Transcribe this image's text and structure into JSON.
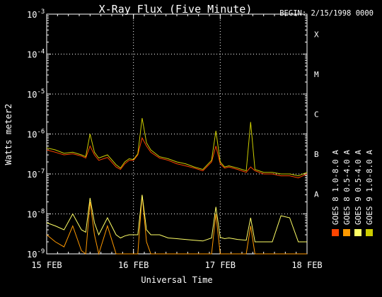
{
  "chart_data": {
    "type": "line",
    "title": "X-Ray Flux (Five Minute)",
    "subtitle": "BEGIN: 2/15/1998 0000",
    "xlabel": "Universal Time",
    "ylabel": "Watts meter2",
    "yscale": "log",
    "ylim": [
      1e-09,
      0.001
    ],
    "xlim_days": [
      0,
      3
    ],
    "x_ticks": [
      {
        "day": 0,
        "label": "15 FEB"
      },
      {
        "day": 1,
        "label": "16 FEB"
      },
      {
        "day": 2,
        "label": "17 FEB"
      },
      {
        "day": 3,
        "label": "18 FEB"
      }
    ],
    "y_ticks": [
      {
        "exp": -9,
        "base": "10",
        "sup": "-9"
      },
      {
        "exp": -8,
        "base": "10",
        "sup": "-8"
      },
      {
        "exp": -7,
        "base": "10",
        "sup": "-7"
      },
      {
        "exp": -6,
        "base": "10",
        "sup": "-6"
      },
      {
        "exp": -5,
        "base": "10",
        "sup": "-5"
      },
      {
        "exp": -4,
        "base": "10",
        "sup": "-4"
      },
      {
        "exp": -3,
        "base": "10",
        "sup": "-3"
      }
    ],
    "flare_classes": [
      {
        "label": "A",
        "exp": -7.5
      },
      {
        "label": "B",
        "exp": -6.5
      },
      {
        "label": "C",
        "exp": -5.5
      },
      {
        "label": "M",
        "exp": -4.5
      },
      {
        "label": "X",
        "exp": -3.5
      }
    ],
    "grid": "dotted, horizontal at decades -8 to -4, vertical at day boundaries",
    "legend_position": "right, vertical",
    "series": [
      {
        "name": "GOES 8 1.0-8.0 A",
        "color": "#ff4400",
        "x": [
          0,
          0.1,
          0.2,
          0.3,
          0.4,
          0.45,
          0.5,
          0.55,
          0.6,
          0.7,
          0.8,
          0.85,
          0.9,
          0.95,
          1.0,
          1.05,
          1.1,
          1.15,
          1.2,
          1.3,
          1.4,
          1.5,
          1.6,
          1.7,
          1.8,
          1.9,
          1.95,
          2.0,
          2.05,
          2.1,
          2.2,
          2.3,
          2.35,
          2.4,
          2.5,
          2.6,
          2.7,
          2.8,
          2.9,
          3.0
        ],
        "y": [
          4e-07,
          3.5e-07,
          3e-07,
          3.2e-07,
          2.8e-07,
          2.5e-07,
          5e-07,
          3e-07,
          2.2e-07,
          2.6e-07,
          1.5e-07,
          1.3e-07,
          1.8e-07,
          2.2e-07,
          2.2e-07,
          3e-07,
          8e-07,
          5e-07,
          3.5e-07,
          2.5e-07,
          2.2e-07,
          1.8e-07,
          1.6e-07,
          1.4e-07,
          1.2e-07,
          2e-07,
          5e-07,
          1.8e-07,
          1.4e-07,
          1.5e-07,
          1.3e-07,
          1.1e-07,
          1.5e-07,
          1.2e-07,
          1e-07,
          1e-07,
          9e-08,
          9e-08,
          8e-08,
          1e-07
        ]
      },
      {
        "name": "GOES 8 0.5-4.0 A",
        "color": "#ff9900",
        "x": [
          0,
          0.1,
          0.2,
          0.3,
          0.4,
          0.45,
          0.5,
          0.55,
          0.6,
          0.7,
          0.8,
          0.85,
          0.9,
          0.95,
          1.0,
          1.05,
          1.1,
          1.15,
          1.2,
          1.3,
          1.4,
          1.5,
          1.6,
          1.7,
          1.8,
          1.9,
          1.95,
          2.0,
          2.05,
          2.1,
          2.2,
          2.3,
          2.35,
          2.4,
          2.5,
          2.6,
          2.7,
          2.8,
          2.9,
          3.0
        ],
        "y": [
          3e-09,
          2e-09,
          1.5e-09,
          5e-09,
          1.2e-09,
          1e-09,
          2e-08,
          3e-09,
          1e-09,
          5e-09,
          1e-09,
          1e-09,
          1e-09,
          1e-09,
          1e-09,
          1e-09,
          3e-08,
          2e-09,
          1e-09,
          1e-09,
          1e-09,
          1e-09,
          1e-09,
          1e-09,
          1e-09,
          1e-09,
          1e-08,
          1e-09,
          1e-09,
          1e-09,
          1e-09,
          1e-09,
          5e-09,
          1e-09,
          1e-09,
          1e-09,
          1e-09,
          1e-09,
          1e-09,
          1e-09
        ]
      },
      {
        "name": "GOES 9 0.5-4.0 A",
        "color": "#ffff66",
        "x": [
          0,
          0.1,
          0.2,
          0.3,
          0.4,
          0.45,
          0.5,
          0.55,
          0.6,
          0.7,
          0.8,
          0.85,
          0.9,
          0.95,
          1.0,
          1.05,
          1.1,
          1.15,
          1.2,
          1.3,
          1.4,
          1.5,
          1.6,
          1.7,
          1.8,
          1.9,
          1.95,
          2.0,
          2.05,
          2.1,
          2.2,
          2.3,
          2.35,
          2.4,
          2.5,
          2.6,
          2.7,
          2.8,
          2.9,
          3.0
        ],
        "y": [
          6e-09,
          5e-09,
          4e-09,
          1e-08,
          4e-09,
          3.5e-09,
          2.5e-08,
          6e-09,
          3e-09,
          8e-09,
          3e-09,
          2.5e-09,
          2.8e-09,
          3e-09,
          3e-09,
          3e-09,
          3e-08,
          4e-09,
          3e-09,
          3e-09,
          2.5e-09,
          2.4e-09,
          2.3e-09,
          2.2e-09,
          2.1e-09,
          2.5e-09,
          1.5e-08,
          2.6e-09,
          2.4e-09,
          2.5e-09,
          2.3e-09,
          2.2e-09,
          8e-09,
          2e-09,
          2e-09,
          2e-09,
          9e-09,
          8e-09,
          2e-09,
          2e-09
        ]
      },
      {
        "name": "GOES 9 1.0-8.0 A",
        "color": "#cccc00",
        "x": [
          0,
          0.1,
          0.2,
          0.3,
          0.4,
          0.45,
          0.5,
          0.55,
          0.6,
          0.7,
          0.8,
          0.85,
          0.9,
          0.95,
          1.0,
          1.05,
          1.1,
          1.15,
          1.2,
          1.3,
          1.4,
          1.5,
          1.6,
          1.7,
          1.8,
          1.9,
          1.95,
          2.0,
          2.05,
          2.1,
          2.2,
          2.3,
          2.35,
          2.4,
          2.5,
          2.6,
          2.7,
          2.8,
          2.9,
          3.0
        ],
        "y": [
          4.5e-07,
          4e-07,
          3.3e-07,
          3.5e-07,
          3e-07,
          2.7e-07,
          1e-06,
          3.5e-07,
          2.5e-07,
          3e-07,
          1.7e-07,
          1.4e-07,
          2e-07,
          2.4e-07,
          2.3e-07,
          3.2e-07,
          2.5e-06,
          6e-07,
          4e-07,
          2.7e-07,
          2.4e-07,
          2e-07,
          1.8e-07,
          1.5e-07,
          1.3e-07,
          2.2e-07,
          1.2e-06,
          2e-07,
          1.5e-07,
          1.6e-07,
          1.4e-07,
          1.2e-07,
          2e-06,
          1.3e-07,
          1.1e-07,
          1.1e-07,
          1e-07,
          1e-07,
          9e-08,
          1.1e-07
        ]
      }
    ]
  }
}
